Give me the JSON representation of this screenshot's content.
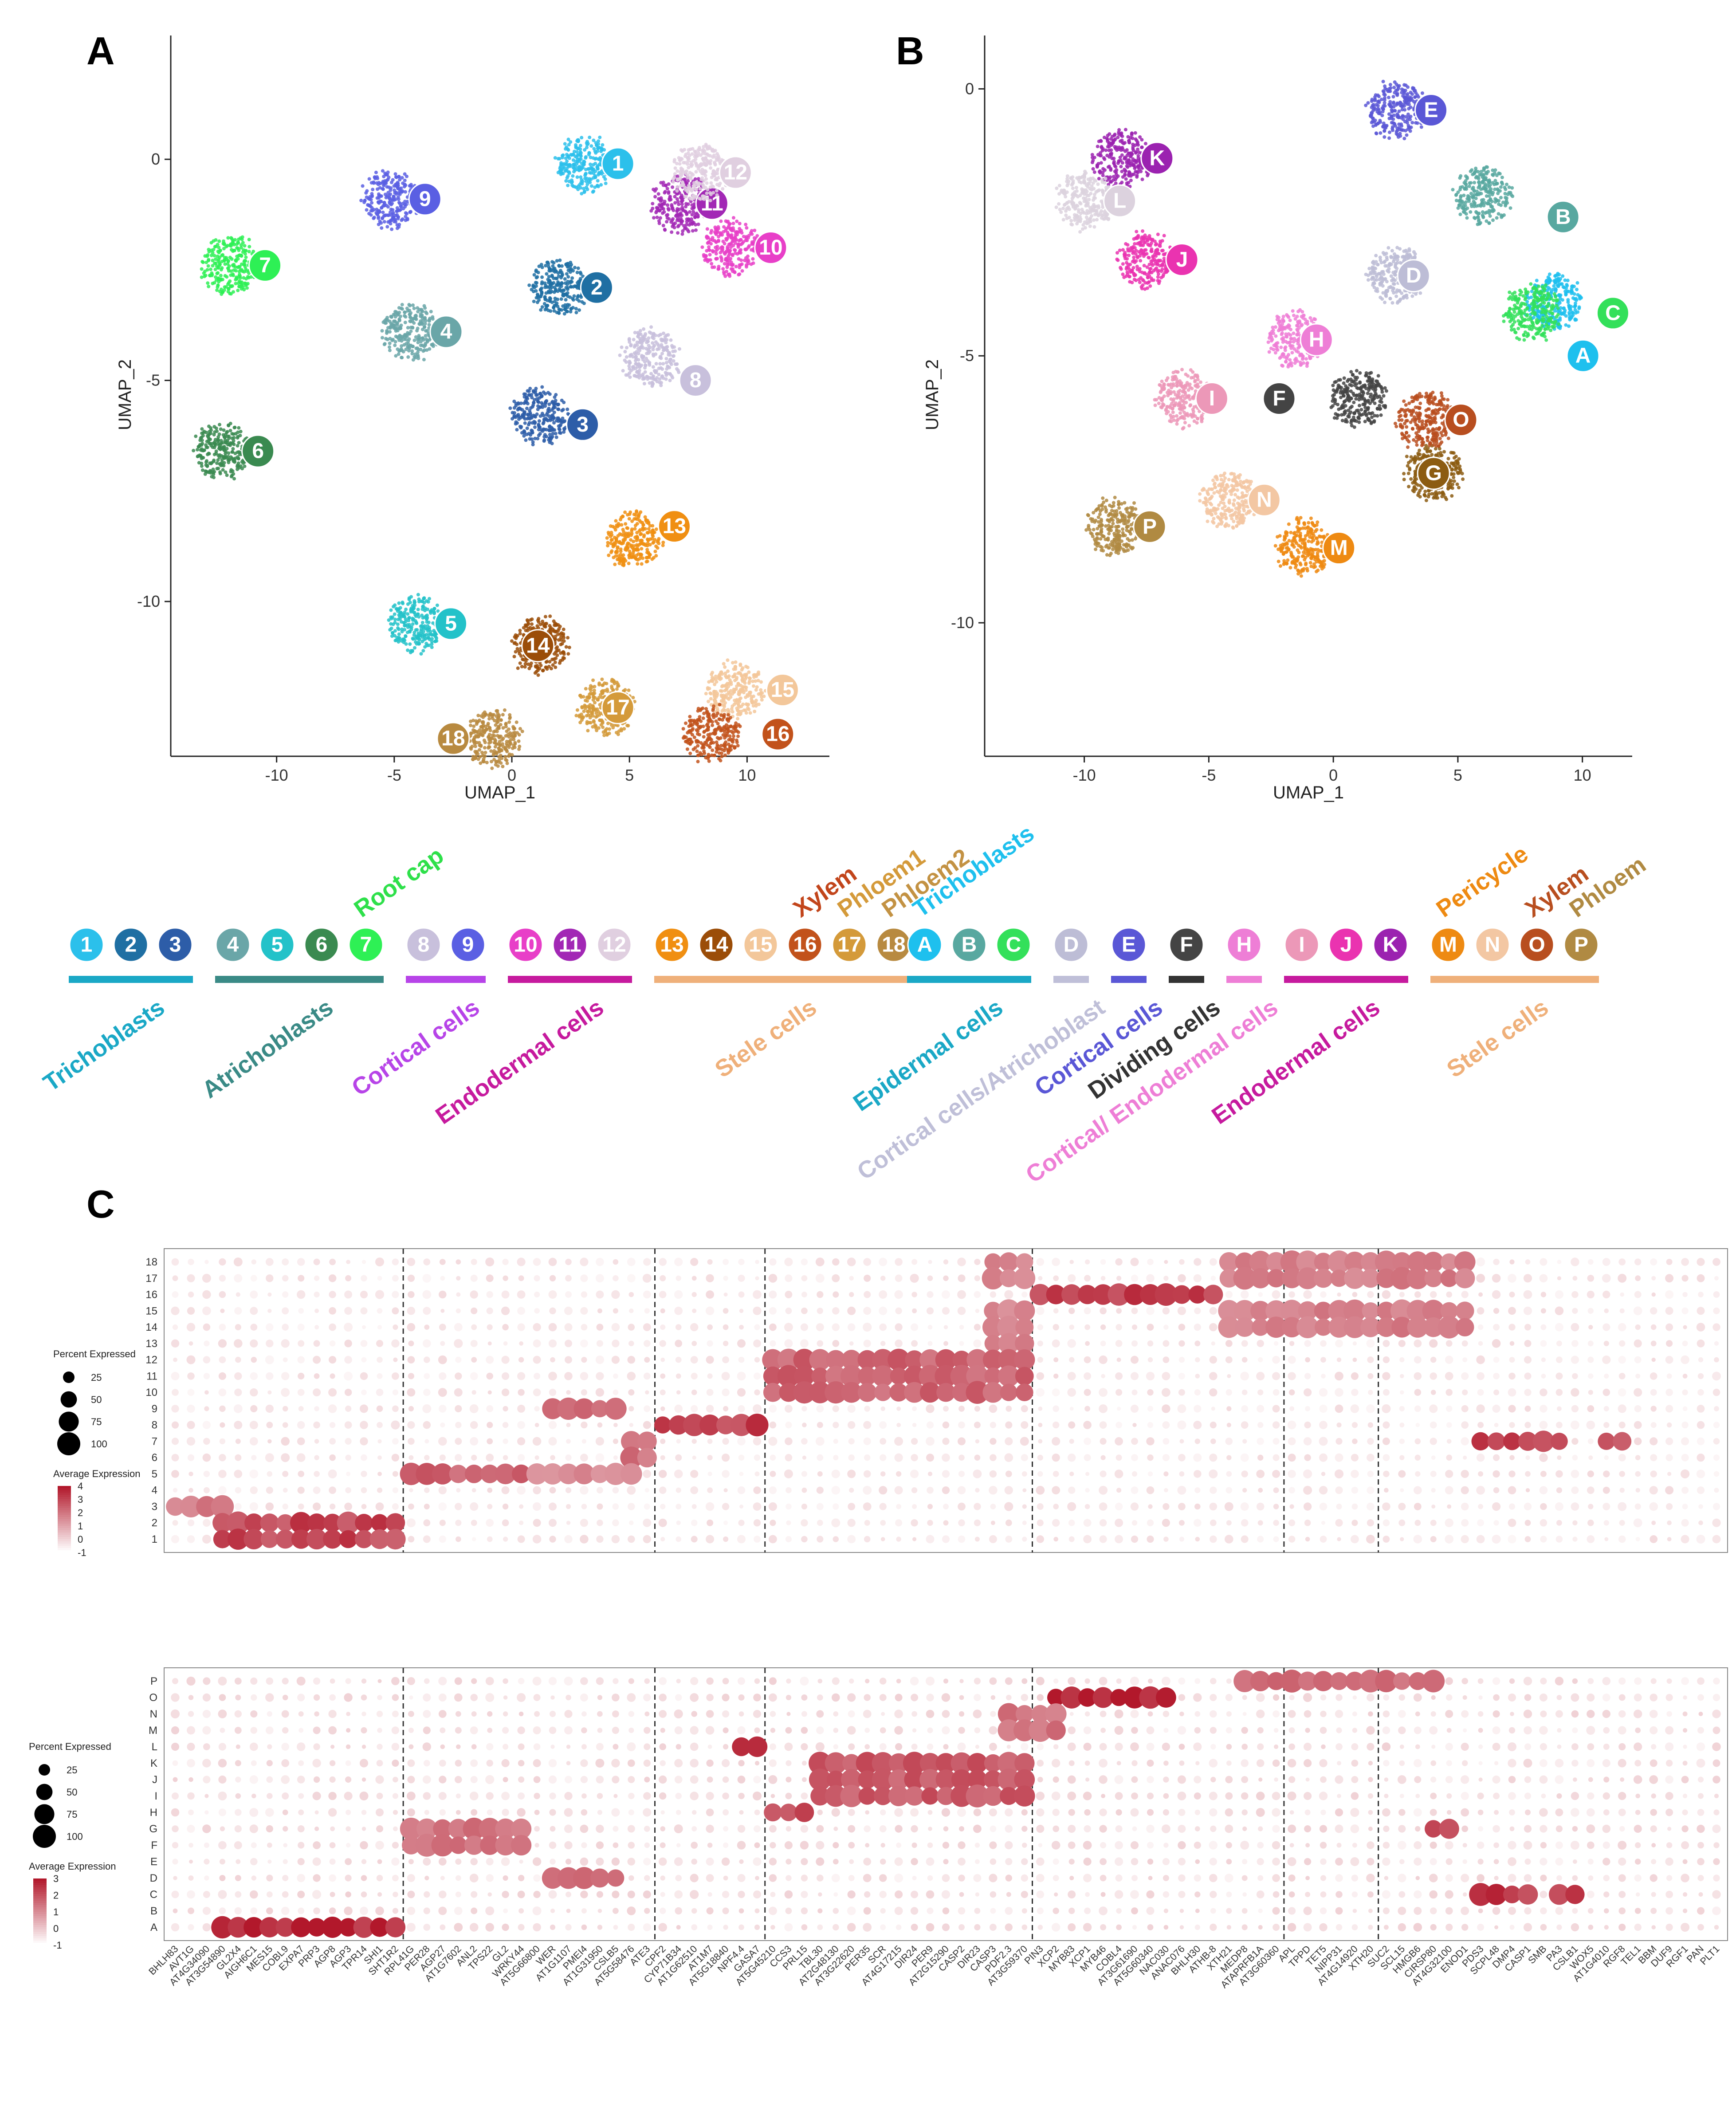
{
  "panels": {
    "a": "A",
    "b": "B",
    "c": "C"
  },
  "chart_data": [
    {
      "id": "A",
      "type": "scatter",
      "title": "",
      "xlabel": "UMAP_1",
      "ylabel": "UMAP_2",
      "xlim": [
        -14.5,
        13.5
      ],
      "ylim": [
        -13.5,
        2.8
      ],
      "xticks": [
        -10,
        -5,
        0,
        5,
        10
      ],
      "yticks": [
        0,
        -5,
        -10
      ],
      "clusters": [
        {
          "label": "1",
          "color": "#2bc0eb",
          "x": 3.1,
          "y": -0.1,
          "lx": 3.0,
          "ly": -0.1
        },
        {
          "label": "2",
          "color": "#1f6fa3",
          "x": 2.0,
          "y": -2.9,
          "lx": 2.1,
          "ly": -2.9
        },
        {
          "label": "3",
          "color": "#2d5da8",
          "x": 1.2,
          "y": -5.8,
          "lx": 1.5,
          "ly": -6.0
        },
        {
          "label": "4",
          "color": "#6aa6a8",
          "x": -4.3,
          "y": -3.9,
          "lx": -4.3,
          "ly": -3.9
        },
        {
          "label": "5",
          "color": "#23c2c9",
          "x": -4.1,
          "y": -10.5,
          "lx": -4.1,
          "ly": -10.5
        },
        {
          "label": "6",
          "color": "#3a8a50",
          "x": -12.3,
          "y": -6.6,
          "lx": -12.3,
          "ly": -6.6
        },
        {
          "label": "7",
          "color": "#2ef055",
          "x": -12.0,
          "y": -2.4,
          "lx": -12.0,
          "ly": -2.4
        },
        {
          "label": "8",
          "color": "#c8c0dc",
          "x": 5.9,
          "y": -4.5,
          "lx": 6.3,
          "ly": -5.0
        },
        {
          "label": "9",
          "color": "#5a5fe3",
          "x": -5.2,
          "y": -0.9,
          "lx": -5.2,
          "ly": -0.9
        },
        {
          "label": "10",
          "color": "#e83fc8",
          "x": 9.3,
          "y": -2.0,
          "lx": 9.5,
          "ly": -2.0
        },
        {
          "label": "11",
          "color": "#a228b5",
          "x": 7.2,
          "y": -1.0,
          "lx": 7.0,
          "ly": -1.0
        },
        {
          "label": "12",
          "color": "#e0cfe0",
          "x": 8.0,
          "y": -0.3,
          "lx": 8.0,
          "ly": -0.3
        },
        {
          "label": "13",
          "color": "#f08f12",
          "x": 5.2,
          "y": -8.6,
          "lx": 5.4,
          "ly": -8.3
        },
        {
          "label": "14",
          "color": "#9b4d08",
          "x": 1.2,
          "y": -11.0,
          "lx": -0.4,
          "ly": -11.0
        },
        {
          "label": "15",
          "color": "#f3c79a",
          "x": 9.5,
          "y": -12.0,
          "lx": 10.0,
          "ly": -12.0
        },
        {
          "label": "16",
          "color": "#c2521b",
          "x": 8.5,
          "y": -13.0,
          "lx": 9.8,
          "ly": -13.0
        },
        {
          "label": "17",
          "color": "#d49a3a",
          "x": 4.0,
          "y": -12.4,
          "lx": 3.0,
          "ly": -12.4
        },
        {
          "label": "18",
          "color": "#b88a40",
          "x": -0.8,
          "y": -13.1,
          "lx": -4.0,
          "ly": -13.1
        }
      ]
    },
    {
      "id": "B",
      "type": "scatter",
      "title": "",
      "xlabel": "UMAP_1",
      "ylabel": "UMAP_2",
      "xlim": [
        -14.0,
        12.0
      ],
      "ylim": [
        -12.5,
        1.0
      ],
      "xticks": [
        -10,
        -5,
        0,
        5,
        10
      ],
      "yticks": [
        0,
        -5,
        -10
      ],
      "clusters": [
        {
          "label": "A",
          "color": "#1ec0ee",
          "x": 8.9,
          "y": -4.0,
          "lx": 8.6,
          "ly": -5.0
        },
        {
          "label": "B",
          "color": "#58a8a0",
          "x": 6.0,
          "y": -2.0,
          "lx": 7.8,
          "ly": -2.4
        },
        {
          "label": "C",
          "color": "#33e05a",
          "x": 8.0,
          "y": -4.2,
          "lx": 9.8,
          "ly": -4.2
        },
        {
          "label": "D",
          "color": "#bdbdd6",
          "x": 2.5,
          "y": -3.5,
          "lx": 1.8,
          "ly": -3.5
        },
        {
          "label": "E",
          "color": "#5a57d6",
          "x": 2.5,
          "y": -0.4,
          "lx": 2.5,
          "ly": -0.4
        },
        {
          "label": "F",
          "color": "#444444",
          "x": 1.0,
          "y": -5.8,
          "lx": -3.6,
          "ly": -5.8
        },
        {
          "label": "G",
          "color": "#8c5c12",
          "x": 4.0,
          "y": -7.2,
          "lx": 2.6,
          "ly": -7.2
        },
        {
          "label": "H",
          "color": "#ee7ed6",
          "x": -1.5,
          "y": -4.7,
          "lx": -2.1,
          "ly": -4.7
        },
        {
          "label": "I",
          "color": "#ec98b8",
          "x": -6.0,
          "y": -5.8,
          "lx": -6.3,
          "ly": -5.8
        },
        {
          "label": "J",
          "color": "#ea33b0",
          "x": -7.5,
          "y": -3.2,
          "lx": -7.5,
          "ly": -3.2
        },
        {
          "label": "K",
          "color": "#9b22b0",
          "x": -8.5,
          "y": -1.3,
          "lx": -8.5,
          "ly": -1.3
        },
        {
          "label": "L",
          "color": "#dcd2de",
          "x": -10.0,
          "y": -2.1,
          "lx": -10.0,
          "ly": -2.1
        },
        {
          "label": "M",
          "color": "#ee8a12",
          "x": -1.2,
          "y": -8.6,
          "lx": -1.2,
          "ly": -8.6
        },
        {
          "label": "N",
          "color": "#f3c7a3",
          "x": -4.2,
          "y": -7.7,
          "lx": -4.2,
          "ly": -7.7
        },
        {
          "label": "O",
          "color": "#b84e1f",
          "x": 3.7,
          "y": -6.2,
          "lx": 3.7,
          "ly": -6.2
        },
        {
          "label": "P",
          "color": "#b08a42",
          "x": -8.8,
          "y": -8.2,
          "lx": -8.8,
          "ly": -8.2
        }
      ]
    },
    {
      "id": "C",
      "type": "dotplot",
      "title": "",
      "top_rows": [
        "18",
        "17",
        "16",
        "15",
        "14",
        "13",
        "12",
        "11",
        "10",
        "9",
        "8",
        "7",
        "6",
        "5",
        "4",
        "3",
        "2",
        "1"
      ],
      "bottom_rows": [
        "P",
        "O",
        "N",
        "M",
        "L",
        "K",
        "J",
        "I",
        "H",
        "G",
        "F",
        "E",
        "D",
        "C",
        "B",
        "A"
      ],
      "genes": [
        "BHLH83",
        "AVT1G",
        "AT4G34090",
        "AT3G54890",
        "GL2X4",
        "AIGH6C1",
        "MES15",
        "COBL9",
        "EXPA7",
        "PRP3",
        "AGP8",
        "AGP3",
        "TPR14",
        "SHI1",
        "SHT1R2",
        "RPL41G",
        "PER28",
        "AGP27",
        "AT1G7602",
        "ANL2",
        "TPS22",
        "GL2",
        "WRKY44",
        "AT5G66800",
        "WER",
        "AT1G1107",
        "PMEI4",
        "AT1G31950",
        "CSLB5",
        "AT5G58476",
        "ATE3",
        "CPF2",
        "CYP71B34",
        "AT1G62510",
        "AT1M7",
        "AT5G18840",
        "NPF4.4",
        "GASA7",
        "AT5G45210",
        "CCS3",
        "PRL15",
        "TBL30",
        "AT2G48130",
        "AT3G22620",
        "PER35",
        "SCR",
        "AT4G17215",
        "DIR24",
        "PER9",
        "AT2G15290",
        "CASP2",
        "DIR23",
        "CASP3",
        "PDF2.3",
        "AT3G59370",
        "PIN3",
        "XCP2",
        "MYB83",
        "XCP1",
        "MYB46",
        "COBL4",
        "AT3G61690",
        "AT5G60340",
        "NAC030",
        "ANAC076",
        "BHLH30",
        "ATHB-8",
        "XTH21",
        "MEDP8",
        "ATAPRFB1A",
        "AT3G60360",
        "APL",
        "TPPD",
        "TET5",
        "NIPP31",
        "AT4G14920",
        "XTH20",
        "SUC2",
        "SCL15",
        "HMGB6",
        "CIRSP80",
        "AT4G32100",
        "ENOD1",
        "PDS3",
        "SCPL48",
        "DMP4",
        "CASP1",
        "SMB",
        "PA3",
        "CSLB1",
        "WOX5",
        "AT1G4010",
        "RGF8",
        "TEL1",
        "BBM",
        "DUF9",
        "RGF1",
        "PAN",
        "PLT1"
      ],
      "top_legend": {
        "size_title": "Percent Expressed",
        "sizes": [
          "25",
          "50",
          "75",
          "100"
        ],
        "color_title": "Average Expression",
        "color_ticks": [
          "4",
          "3",
          "2",
          "1",
          "0",
          "-1"
        ]
      },
      "bottom_legend": {
        "size_title": "Percent Expressed",
        "sizes": [
          "25",
          "50",
          "75",
          "100"
        ],
        "color_title": "Average Expression",
        "color_ticks": [
          "3",
          "2",
          "1",
          "0",
          "-1"
        ]
      },
      "separators_after_gene_index": [
        14,
        30,
        37,
        54,
        70,
        76
      ],
      "top_highlights": [
        {
          "rows": [
            "1",
            "2"
          ],
          "genes": [
            3,
            14
          ],
          "avg": 3.2
        },
        {
          "rows": [
            "3"
          ],
          "genes": [
            0,
            3
          ],
          "avg": 2.0
        },
        {
          "rows": [
            "5"
          ],
          "genes": [
            15,
            22
          ],
          "avg": 2.6
        },
        {
          "rows": [
            "5"
          ],
          "genes": [
            23,
            29
          ],
          "avg": 1.6
        },
        {
          "rows": [
            "6",
            "7"
          ],
          "genes": [
            29,
            30
          ],
          "avg": 2.2
        },
        {
          "rows": [
            "9"
          ],
          "genes": [
            24,
            28
          ],
          "avg": 2.4
        },
        {
          "rows": [
            "8"
          ],
          "genes": [
            31,
            37
          ],
          "avg": 3.3
        },
        {
          "rows": [
            "10",
            "11",
            "12"
          ],
          "genes": [
            38,
            54
          ],
          "avg": 2.5
        },
        {
          "rows": [
            "16"
          ],
          "genes": [
            55,
            66
          ],
          "avg": 3.5
        },
        {
          "rows": [
            "13",
            "14",
            "15",
            "17",
            "18"
          ],
          "genes": [
            52,
            54
          ],
          "avg": 1.8
        },
        {
          "rows": [
            "14",
            "15",
            "17",
            "18"
          ],
          "genes": [
            67,
            82
          ],
          "avg": 1.9
        },
        {
          "rows": [
            "7"
          ],
          "genes": [
            83,
            88
          ],
          "avg": 3.2
        },
        {
          "rows": [
            "7"
          ],
          "genes": [
            91,
            92
          ],
          "avg": 2.8
        }
      ],
      "bottom_highlights": [
        {
          "rows": [
            "A"
          ],
          "genes": [
            3,
            14
          ],
          "avg": 3.0
        },
        {
          "rows": [
            "F",
            "G"
          ],
          "genes": [
            15,
            22
          ],
          "avg": 1.5
        },
        {
          "rows": [
            "D"
          ],
          "genes": [
            24,
            28
          ],
          "avg": 1.8
        },
        {
          "rows": [
            "L"
          ],
          "genes": [
            36,
            37
          ],
          "avg": 2.6
        },
        {
          "rows": [
            "H"
          ],
          "genes": [
            38,
            40
          ],
          "avg": 2.2
        },
        {
          "rows": [
            "I",
            "J",
            "K"
          ],
          "genes": [
            41,
            54
          ],
          "avg": 2.0
        },
        {
          "rows": [
            "O"
          ],
          "genes": [
            56,
            63
          ],
          "avg": 3.2
        },
        {
          "rows": [
            "M",
            "N"
          ],
          "genes": [
            53,
            56
          ],
          "avg": 1.5
        },
        {
          "rows": [
            "P"
          ],
          "genes": [
            68,
            80
          ],
          "avg": 1.6
        },
        {
          "rows": [
            "C"
          ],
          "genes": [
            83,
            86
          ],
          "avg": 2.6
        },
        {
          "rows": [
            "C"
          ],
          "genes": [
            88,
            89
          ],
          "avg": 2.5
        },
        {
          "rows": [
            "G"
          ],
          "genes": [
            80,
            81
          ],
          "avg": 2.5
        }
      ]
    }
  ],
  "legend_groups_a": [
    {
      "label": "Trichoblasts",
      "color": "#1aa8c6",
      "members": [
        "1",
        "2",
        "3"
      ]
    },
    {
      "label": "Atrichoblasts",
      "color": "#3a8a86",
      "members": [
        "4",
        "5",
        "6",
        "7"
      ]
    },
    {
      "label": "Cortical cells",
      "color": "#b744e8",
      "members": [
        "8",
        "9"
      ]
    },
    {
      "label": "Endodermal cells",
      "color": "#c61a9e",
      "members": [
        "10",
        "11",
        "12"
      ]
    },
    {
      "label": "Stele cells",
      "color": "#efb07a",
      "members": [
        "13",
        "14",
        "15",
        "16",
        "17",
        "18"
      ]
    }
  ],
  "legend_callouts_a": [
    {
      "label": "Root cap",
      "color": "#2ee04a",
      "member": "7"
    },
    {
      "label": "Xylem",
      "color": "#c2451b",
      "member": "16"
    },
    {
      "label": "Phloem1",
      "color": "#d49a3a",
      "member": "17"
    },
    {
      "label": "Phloem2",
      "color": "#c39243",
      "member": "18"
    }
  ],
  "legend_groups_b": [
    {
      "label": "Epidermal cells",
      "color": "#1aa8c6",
      "members": [
        "A",
        "B",
        "C"
      ]
    },
    {
      "label": "Cortical cells/Atrichoblast",
      "color": "#bfbfd8",
      "members": [
        "D"
      ]
    },
    {
      "label": "Cortical cells",
      "color": "#5a57d6",
      "members": [
        "E"
      ]
    },
    {
      "label": "Dividing cells",
      "color": "#333333",
      "members": [
        "F"
      ]
    },
    {
      "label": "Cortical/ Endodermal cells",
      "color": "#ee7ed6",
      "members": [
        "H"
      ]
    },
    {
      "label": "Endodermal cells",
      "color": "#c61a9e",
      "members": [
        "I",
        "J",
        "K"
      ]
    },
    {
      "label": "Stele cells",
      "color": "#efb07a",
      "members": [
        "M",
        "N",
        "O",
        "P"
      ]
    }
  ],
  "legend_callouts_b": [
    {
      "label": "Trichoblasts",
      "color": "#1ec0ee",
      "member": "A"
    },
    {
      "label": "Pericycle",
      "color": "#ee8a12",
      "member": "M"
    },
    {
      "label": "Xylem",
      "color": "#b84e1f",
      "member": "O"
    },
    {
      "label": "Phloem",
      "color": "#b08a42",
      "member": "P"
    }
  ]
}
